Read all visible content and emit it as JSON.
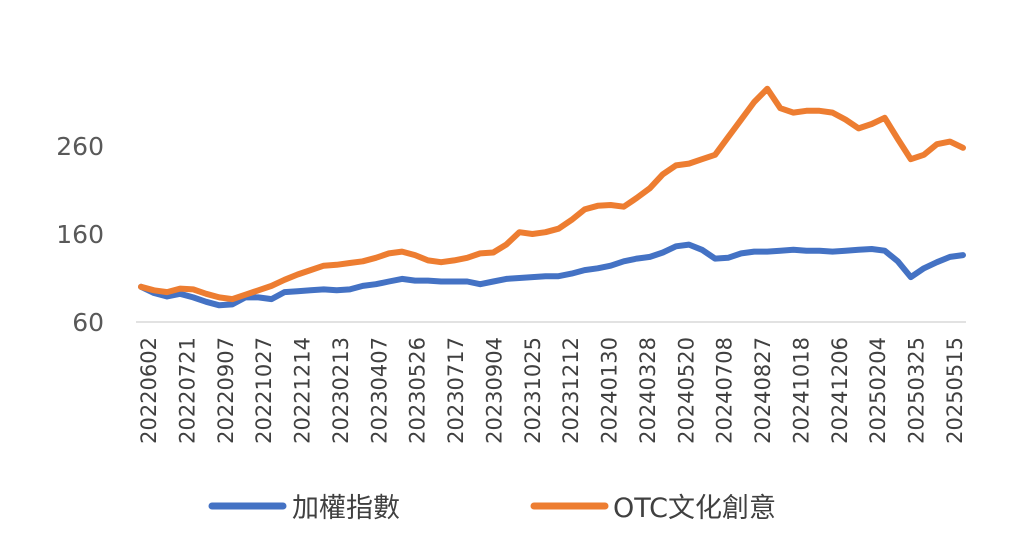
{
  "chart_data": {
    "type": "line",
    "title": "",
    "xlabel": "",
    "ylabel": "",
    "ylim": [
      60,
      360
    ],
    "yticks": [
      60,
      160,
      260
    ],
    "grid": false,
    "legend": "bottom",
    "x_tick_labels": [
      "20220602",
      "20220721",
      "20220907",
      "20221027",
      "20221214",
      "20230213",
      "20230407",
      "20230526",
      "20230717",
      "20230904",
      "20231025",
      "20231212",
      "20240130",
      "20240328",
      "20240520",
      "20240708",
      "20240827",
      "20241018",
      "20241206",
      "20250204",
      "20250325",
      "20250515"
    ],
    "series": [
      {
        "name": "加權指數",
        "color": "#4472C4",
        "values": [
          100,
          93,
          89,
          92,
          88,
          83,
          79,
          80,
          88,
          88,
          86,
          94,
          95,
          96,
          97,
          96,
          97,
          101,
          103,
          106,
          109,
          107,
          107,
          106,
          106,
          106,
          103,
          106,
          109,
          110,
          111,
          112,
          112,
          115,
          119,
          121,
          124,
          129,
          132,
          134,
          139,
          146,
          148,
          142,
          132,
          133,
          138,
          140,
          140,
          141,
          142,
          141,
          141,
          140,
          141,
          142,
          143,
          141,
          129,
          111,
          121,
          128,
          134,
          136
        ]
      },
      {
        "name": "OTC文化創意",
        "color": "#ED7D31",
        "values": [
          100,
          96,
          94,
          98,
          97,
          92,
          88,
          86,
          91,
          96,
          101,
          108,
          114,
          119,
          124,
          125,
          127,
          129,
          133,
          138,
          140,
          136,
          130,
          128,
          130,
          133,
          138,
          139,
          148,
          162,
          160,
          162,
          166,
          176,
          188,
          192,
          193,
          191,
          201,
          212,
          228,
          238,
          240,
          245,
          250,
          270,
          290,
          310,
          325,
          303,
          298,
          300,
          300,
          298,
          290,
          280,
          285,
          292,
          268,
          245,
          250,
          262,
          265,
          258
        ]
      }
    ]
  }
}
